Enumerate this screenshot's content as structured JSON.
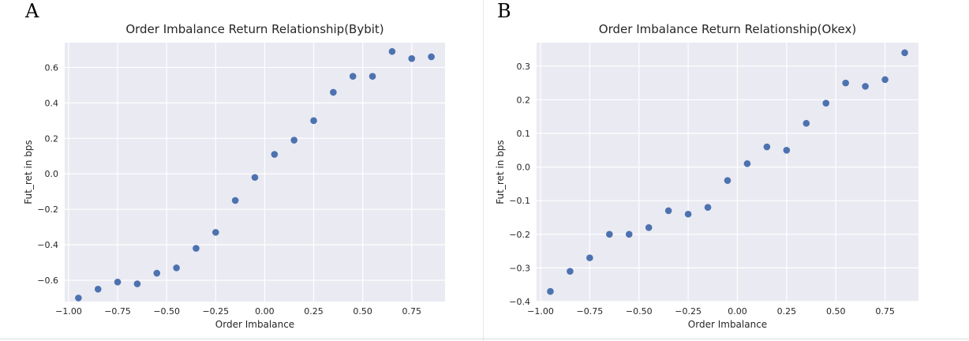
{
  "panels": [
    {
      "letter": "A",
      "chart_data": {
        "type": "scatter",
        "title": "Order Imbalance Return Relationship(Bybit)",
        "xlabel": "Order Imbalance",
        "ylabel": "Fut_ret in bps",
        "xlim": [
          -1.02,
          0.92
        ],
        "ylim": [
          -0.72,
          0.74
        ],
        "xticks": [
          -1.0,
          -0.75,
          -0.5,
          -0.25,
          0.0,
          0.25,
          0.5,
          0.75
        ],
        "xtick_labels": [
          "−1.00",
          "−0.75",
          "−0.50",
          "−0.25",
          "0.00",
          "0.25",
          "0.50",
          "0.75"
        ],
        "yticks": [
          -0.6,
          -0.4,
          -0.2,
          0.0,
          0.2,
          0.4,
          0.6
        ],
        "ytick_labels": [
          "−0.6",
          "−0.4",
          "−0.2",
          "0.0",
          "0.2",
          "0.4",
          "0.6"
        ],
        "grid": true,
        "marker_color": "#4c72b0",
        "background_color": "#eaeaf2",
        "x": [
          -0.95,
          -0.85,
          -0.75,
          -0.65,
          -0.55,
          -0.45,
          -0.35,
          -0.25,
          -0.15,
          -0.05,
          0.05,
          0.15,
          0.25,
          0.35,
          0.45,
          0.55,
          0.65,
          0.75,
          0.85
        ],
        "y": [
          -0.7,
          -0.65,
          -0.61,
          -0.62,
          -0.56,
          -0.53,
          -0.42,
          -0.33,
          -0.15,
          -0.02,
          0.11,
          0.19,
          0.3,
          0.46,
          0.55,
          0.55,
          0.69,
          0.65,
          0.66
        ]
      }
    },
    {
      "letter": "B",
      "chart_data": {
        "type": "scatter",
        "title": "Order Imbalance Return Relationship(Okex)",
        "xlabel": "Order Imbalance",
        "ylabel": "Fut_ret in bps",
        "xlim": [
          -1.02,
          0.92
        ],
        "ylim": [
          -0.4,
          0.37
        ],
        "xticks": [
          -1.0,
          -0.75,
          -0.5,
          -0.25,
          0.0,
          0.25,
          0.5,
          0.75
        ],
        "xtick_labels": [
          "−1.00",
          "−0.75",
          "−0.50",
          "−0.25",
          "0.00",
          "0.25",
          "0.50",
          "0.75"
        ],
        "yticks": [
          -0.4,
          -0.3,
          -0.2,
          -0.1,
          0.0,
          0.1,
          0.2,
          0.3
        ],
        "ytick_labels": [
          "−0.4",
          "−0.3",
          "−0.2",
          "−0.1",
          "0.0",
          "0.1",
          "0.2",
          "0.3"
        ],
        "grid": true,
        "marker_color": "#4c72b0",
        "background_color": "#eaeaf2",
        "x": [
          -0.95,
          -0.85,
          -0.75,
          -0.65,
          -0.55,
          -0.45,
          -0.35,
          -0.25,
          -0.15,
          -0.05,
          0.05,
          0.15,
          0.25,
          0.35,
          0.45,
          0.55,
          0.65,
          0.75,
          0.85
        ],
        "y": [
          -0.37,
          -0.31,
          -0.27,
          -0.2,
          -0.2,
          -0.18,
          -0.13,
          -0.14,
          -0.12,
          -0.04,
          0.01,
          0.06,
          0.05,
          0.13,
          0.19,
          0.25,
          0.24,
          0.26,
          0.34
        ]
      }
    }
  ]
}
